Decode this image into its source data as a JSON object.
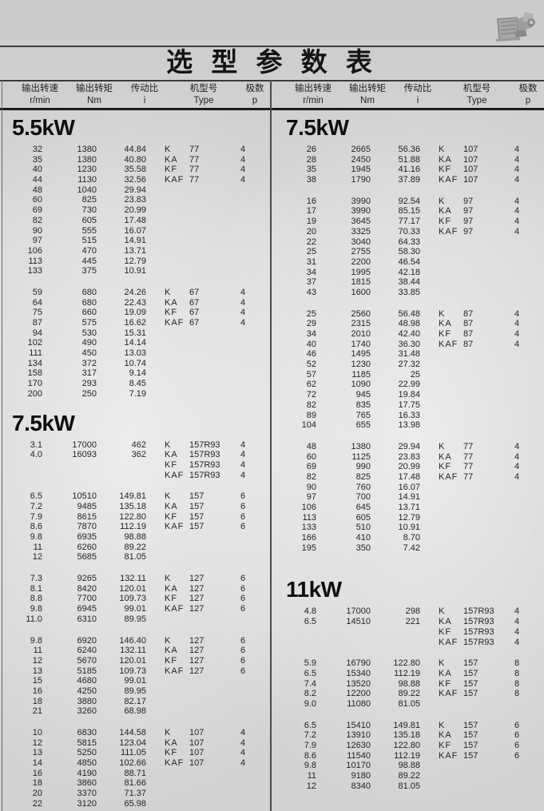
{
  "page": {
    "title": "选 型 参 数 表"
  },
  "header": {
    "cols": [
      {
        "zh": "输出转速",
        "en": "r/min"
      },
      {
        "zh": "输出转矩",
        "en": "Nm"
      },
      {
        "zh": "传动比",
        "en": "i"
      },
      {
        "zh": "机型号",
        "en": "Type"
      },
      {
        "zh": "极数",
        "en": "p"
      }
    ]
  },
  "photo": {
    "name": "gearmotor-photo"
  },
  "colors": {
    "line": "#3a3a3a",
    "text": "#1c1c1c",
    "paper": "#d2d2d2"
  },
  "columns": [
    {
      "sections": [
        {
          "power": "5.5kW",
          "blocks": [
            [
              [
                "32",
                "1380",
                "44.84",
                "K",
                "77",
                "4"
              ],
              [
                "35",
                "1380",
                "40.80",
                "KA",
                "77",
                "4"
              ],
              [
                "40",
                "1230",
                "35.58",
                "KF",
                "77",
                "4"
              ],
              [
                "44",
                "1130",
                "32.56",
                "KAF",
                "77",
                "4"
              ],
              [
                "48",
                "1040",
                "29.94",
                "",
                "",
                ""
              ],
              [
                "60",
                "825",
                "23.83",
                "",
                "",
                ""
              ],
              [
                "69",
                "730",
                "20.99",
                "",
                "",
                ""
              ],
              [
                "82",
                "605",
                "17.48",
                "",
                "",
                ""
              ],
              [
                "90",
                "555",
                "16.07",
                "",
                "",
                ""
              ],
              [
                "97",
                "515",
                "14.91",
                "",
                "",
                ""
              ],
              [
                "106",
                "470",
                "13.71",
                "",
                "",
                ""
              ],
              [
                "113",
                "445",
                "12.79",
                "",
                "",
                ""
              ],
              [
                "133",
                "375",
                "10.91",
                "",
                "",
                ""
              ]
            ],
            [
              [
                "59",
                "680",
                "24.26",
                "K",
                "67",
                "4"
              ],
              [
                "64",
                "680",
                "22.43",
                "KA",
                "67",
                "4"
              ],
              [
                "75",
                "660",
                "19.09",
                "KF",
                "67",
                "4"
              ],
              [
                "87",
                "575",
                "16.62",
                "KAF",
                "67",
                "4"
              ],
              [
                "94",
                "530",
                "15.31",
                "",
                "",
                ""
              ],
              [
                "102",
                "490",
                "14.14",
                "",
                "",
                ""
              ],
              [
                "111",
                "450",
                "13.03",
                "",
                "",
                ""
              ],
              [
                "134",
                "372",
                "10.74",
                "",
                "",
                ""
              ],
              [
                "158",
                "317",
                "9.14",
                "",
                "",
                ""
              ],
              [
                "170",
                "293",
                "8.45",
                "",
                "",
                ""
              ],
              [
                "200",
                "250",
                "7.19",
                "",
                "",
                ""
              ]
            ]
          ]
        },
        {
          "power": "7.5kW",
          "blocks": [
            [
              [
                "3.1",
                "17000",
                "462",
                "K",
                "157R93",
                "4"
              ],
              [
                "4.0",
                "16093",
                "362",
                "KA",
                "157R93",
                "4"
              ],
              [
                "",
                "",
                "",
                "KF",
                "157R93",
                "4"
              ],
              [
                "",
                "",
                "",
                "KAF",
                "157R93",
                "4"
              ]
            ],
            [
              [
                "6.5",
                "10510",
                "149.81",
                "K",
                "157",
                "6"
              ],
              [
                "7.2",
                "9485",
                "135.18",
                "KA",
                "157",
                "6"
              ],
              [
                "7.9",
                "8615",
                "122.80",
                "KF",
                "157",
                "6"
              ],
              [
                "8.6",
                "7870",
                "112.19",
                "KAF",
                "157",
                "6"
              ],
              [
                "9.8",
                "6935",
                "98.88",
                "",
                "",
                ""
              ],
              [
                "11",
                "6260",
                "89.22",
                "",
                "",
                ""
              ],
              [
                "12",
                "5685",
                "81.05",
                "",
                "",
                ""
              ]
            ],
            [
              [
                "7.3",
                "9265",
                "132.11",
                "K",
                "127",
                "6"
              ],
              [
                "8.1",
                "8420",
                "120.01",
                "KA",
                "127",
                "6"
              ],
              [
                "8.8",
                "7700",
                "109.73",
                "KF",
                "127",
                "6"
              ],
              [
                "9.8",
                "6945",
                "99.01",
                "KAF",
                "127",
                "6"
              ],
              [
                "11.0",
                "6310",
                "89.95",
                "",
                "",
                ""
              ]
            ],
            [
              [
                "9.8",
                "6920",
                "146.40",
                "K",
                "127",
                "6"
              ],
              [
                "11",
                "6240",
                "132.11",
                "KA",
                "127",
                "6"
              ],
              [
                "12",
                "5670",
                "120.01",
                "KF",
                "127",
                "6"
              ],
              [
                "13",
                "5185",
                "109.73",
                "KAF",
                "127",
                "6"
              ],
              [
                "15",
                "4680",
                "99.01",
                "",
                "",
                ""
              ],
              [
                "16",
                "4250",
                "89.95",
                "",
                "",
                ""
              ],
              [
                "18",
                "3880",
                "82.17",
                "",
                "",
                ""
              ],
              [
                "21",
                "3260",
                "68.98",
                "",
                "",
                ""
              ]
            ],
            [
              [
                "10",
                "6830",
                "144.58",
                "K",
                "107",
                "4"
              ],
              [
                "12",
                "5815",
                "123.04",
                "KA",
                "107",
                "4"
              ],
              [
                "13",
                "5250",
                "111.05",
                "KF",
                "107",
                "4"
              ],
              [
                "14",
                "4850",
                "102.66",
                "KAF",
                "107",
                "4"
              ],
              [
                "16",
                "4190",
                "88.71",
                "",
                "",
                ""
              ],
              [
                "18",
                "3860",
                "81.66",
                "",
                "",
                ""
              ],
              [
                "20",
                "3370",
                "71.37",
                "",
                "",
                ""
              ],
              [
                "22",
                "3120",
                "65.98",
                "",
                "",
                ""
              ]
            ]
          ]
        }
      ]
    },
    {
      "sections": [
        {
          "power": "7.5kW",
          "blocks": [
            [
              [
                "26",
                "2665",
                "56.36",
                "K",
                "107",
                "4"
              ],
              [
                "28",
                "2450",
                "51.88",
                "KA",
                "107",
                "4"
              ],
              [
                "35",
                "1945",
                "41.16",
                "KF",
                "107",
                "4"
              ],
              [
                "38",
                "1790",
                "37.89",
                "KAF",
                "107",
                "4"
              ]
            ],
            [
              [
                "16",
                "3990",
                "92.54",
                "K",
                "97",
                "4"
              ],
              [
                "17",
                "3990",
                "85.15",
                "KA",
                "97",
                "4"
              ],
              [
                "19",
                "3645",
                "77.17",
                "KF",
                "97",
                "4"
              ],
              [
                "20",
                "3325",
                "70.33",
                "KAF",
                "97",
                "4"
              ],
              [
                "22",
                "3040",
                "64.33",
                "",
                "",
                ""
              ],
              [
                "25",
                "2755",
                "58.30",
                "",
                "",
                ""
              ],
              [
                "31",
                "2200",
                "46.54",
                "",
                "",
                ""
              ],
              [
                "34",
                "1995",
                "42.18",
                "",
                "",
                ""
              ],
              [
                "37",
                "1815",
                "38.44",
                "",
                "",
                ""
              ],
              [
                "43",
                "1600",
                "33.85",
                "",
                "",
                ""
              ]
            ],
            [
              [
                "25",
                "2560",
                "56.48",
                "K",
                "87",
                "4"
              ],
              [
                "29",
                "2315",
                "48.98",
                "KA",
                "87",
                "4"
              ],
              [
                "34",
                "2010",
                "42.40",
                "KF",
                "87",
                "4"
              ],
              [
                "40",
                "1740",
                "36.30",
                "KAF",
                "87",
                "4"
              ],
              [
                "46",
                "1495",
                "31.48",
                "",
                "",
                ""
              ],
              [
                "52",
                "1230",
                "27.32",
                "",
                "",
                ""
              ],
              [
                "57",
                "1185",
                "25",
                "",
                "",
                ""
              ],
              [
                "62",
                "1090",
                "22.99",
                "",
                "",
                ""
              ],
              [
                "72",
                "945",
                "19.84",
                "",
                "",
                ""
              ],
              [
                "82",
                "835",
                "17.75",
                "",
                "",
                ""
              ],
              [
                "89",
                "765",
                "16.33",
                "",
                "",
                ""
              ],
              [
                "104",
                "655",
                "13.98",
                "",
                "",
                ""
              ]
            ],
            [
              [
                "48",
                "1380",
                "29.94",
                "K",
                "77",
                "4"
              ],
              [
                "60",
                "1125",
                "23.83",
                "KA",
                "77",
                "4"
              ],
              [
                "69",
                "990",
                "20.99",
                "KF",
                "77",
                "4"
              ],
              [
                "82",
                "825",
                "17.48",
                "KAF",
                "77",
                "4"
              ],
              [
                "90",
                "760",
                "16.07",
                "",
                "",
                ""
              ],
              [
                "97",
                "700",
                "14.91",
                "",
                "",
                ""
              ],
              [
                "106",
                "645",
                "13.71",
                "",
                "",
                ""
              ],
              [
                "113",
                "605",
                "12.79",
                "",
                "",
                ""
              ],
              [
                "133",
                "510",
                "10.91",
                "",
                "",
                ""
              ],
              [
                "166",
                "410",
                "8.70",
                "",
                "",
                ""
              ],
              [
                "195",
                "350",
                "7.42",
                "",
                "",
                ""
              ]
            ]
          ]
        },
        {
          "power": "11kW",
          "blocks": [
            [
              [
                "4.8",
                "17000",
                "298",
                "K",
                "157R93",
                "4"
              ],
              [
                "6.5",
                "14510",
                "221",
                "KA",
                "157R93",
                "4"
              ],
              [
                "",
                "",
                "",
                "KF",
                "157R93",
                "4"
              ],
              [
                "",
                "",
                "",
                "KAF",
                "157R93",
                "4"
              ]
            ],
            [
              [
                "5.9",
                "16790",
                "122.80",
                "K",
                "157",
                "8"
              ],
              [
                "6.5",
                "15340",
                "112.19",
                "KA",
                "157",
                "8"
              ],
              [
                "7.4",
                "13520",
                "98.88",
                "KF",
                "157",
                "8"
              ],
              [
                "8.2",
                "12200",
                "89.22",
                "KAF",
                "157",
                "8"
              ],
              [
                "9.0",
                "11080",
                "81.05",
                "",
                "",
                ""
              ]
            ],
            [
              [
                "6.5",
                "15410",
                "149.81",
                "K",
                "157",
                "6"
              ],
              [
                "7.2",
                "13910",
                "135.18",
                "KA",
                "157",
                "6"
              ],
              [
                "7.9",
                "12630",
                "122.80",
                "KF",
                "157",
                "6"
              ],
              [
                "8.6",
                "11540",
                "112.19",
                "KAF",
                "157",
                "6"
              ],
              [
                "9.8",
                "10170",
                "98.88",
                "",
                "",
                ""
              ],
              [
                "11",
                "9180",
                "89.22",
                "",
                "",
                ""
              ],
              [
                "12",
                "8340",
                "81.05",
                "",
                "",
                ""
              ]
            ]
          ]
        }
      ]
    }
  ]
}
